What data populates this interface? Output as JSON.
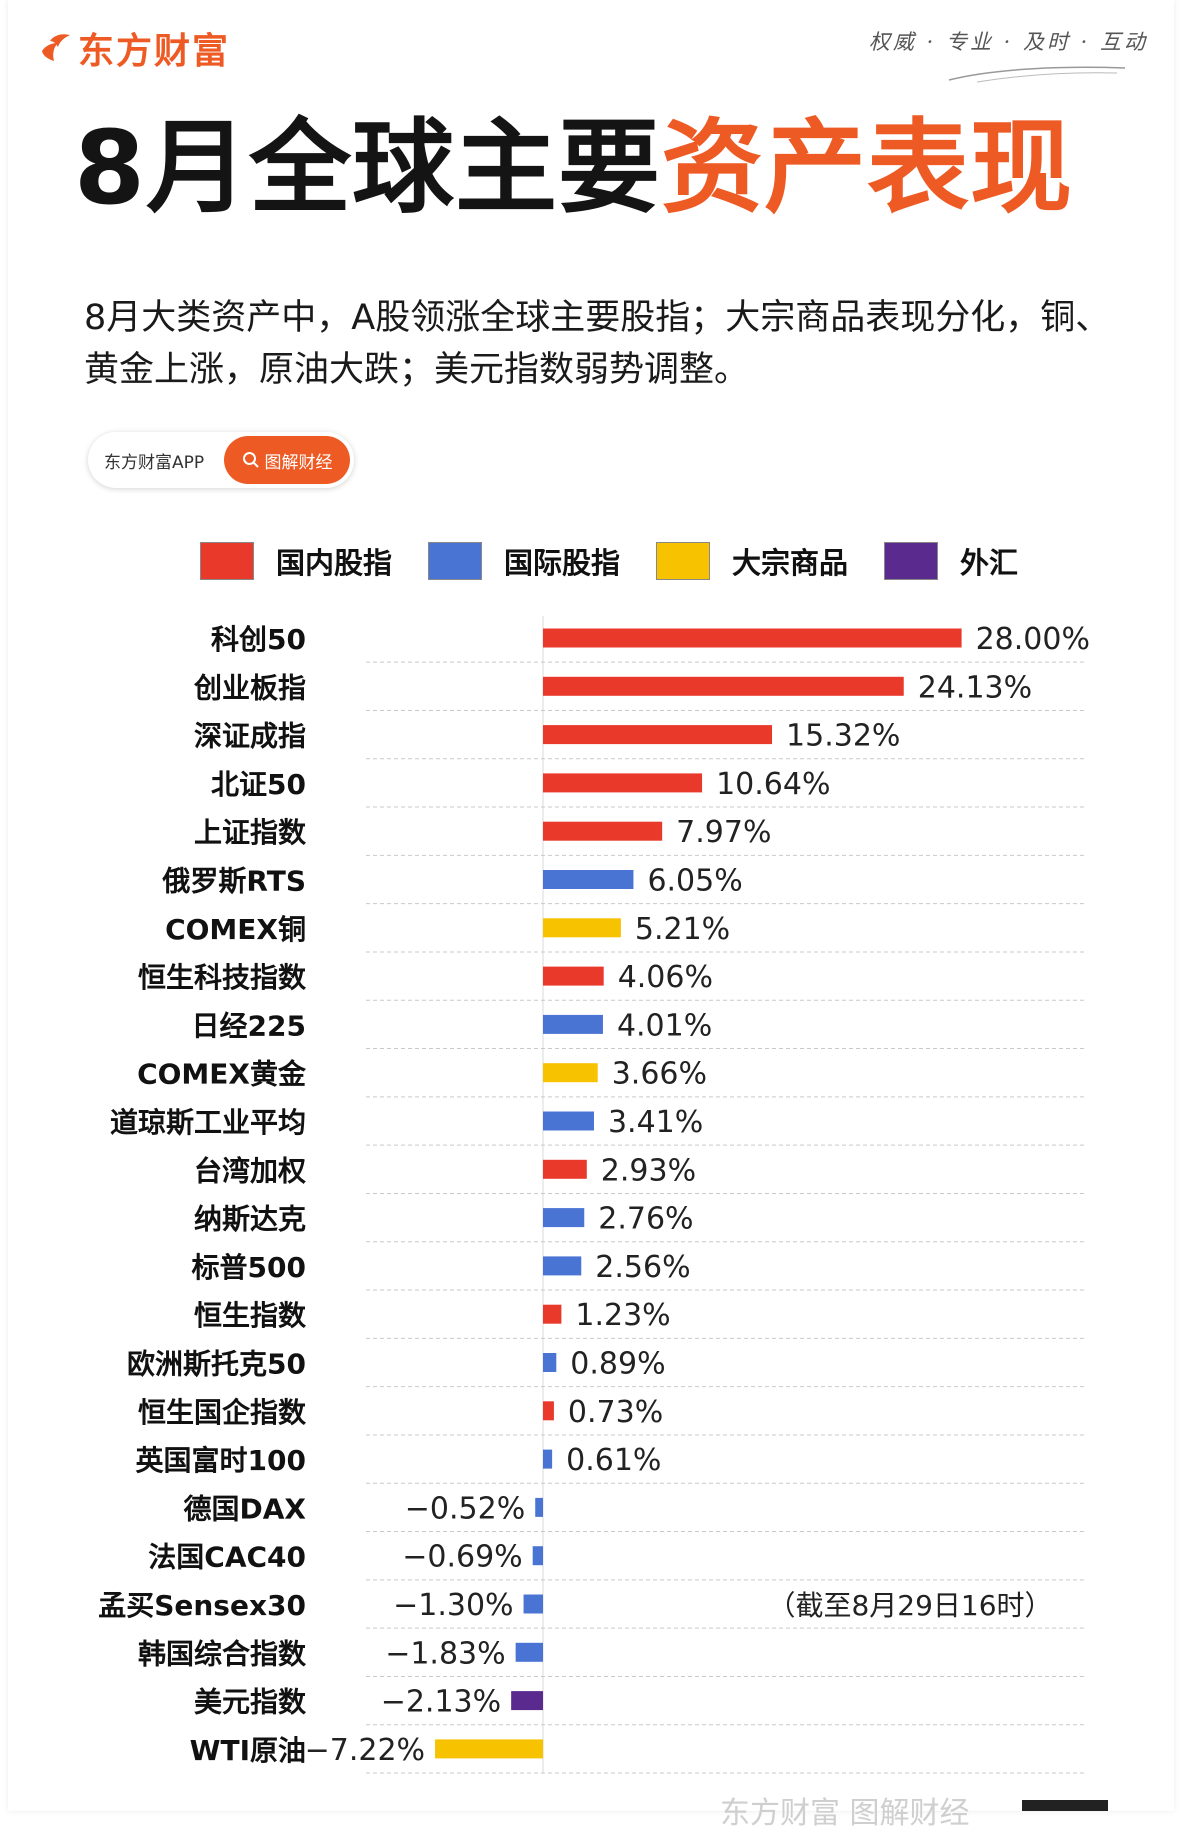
{
  "brand": {
    "name": "东方财富",
    "slogan": "权威 · 专业 · 及时 · 互动",
    "color": "#ee5a24"
  },
  "title": {
    "part1": "8月全球主要",
    "part2": "资产表现"
  },
  "description": "8月大类资产中，A股领涨全球主要股指；大宗商品表现分化，铜、黄金上涨，原油大跌；美元指数弱势调整。",
  "search": {
    "app_label": "东方财富APP",
    "button_label": "图解财经",
    "button_icon": "search-icon"
  },
  "legend": [
    {
      "label": "国内股指",
      "color": "#e8392b"
    },
    {
      "label": "国际股指",
      "color": "#4a74d4"
    },
    {
      "label": "大宗商品",
      "color": "#f7c200"
    },
    {
      "label": "外汇",
      "color": "#5b2a8e"
    }
  ],
  "chart_data": {
    "type": "bar",
    "orientation": "horizontal",
    "unit": "%",
    "categories": [
      "科创50",
      "创业板指",
      "深证成指",
      "北证50",
      "上证指数",
      "俄罗斯RTS",
      "COMEX铜",
      "恒生科技指数",
      "日经225",
      "COMEX黄金",
      "道琼斯工业平均",
      "台湾加权",
      "纳斯达克",
      "标普500",
      "恒生指数",
      "欧洲斯托克50",
      "恒生国企指数",
      "英国富时100",
      "德国DAX",
      "法国CAC40",
      "孟买Sensex30",
      "韩国综合指数",
      "美元指数",
      "WTI原油"
    ],
    "values": [
      28.0,
      24.13,
      15.32,
      10.64,
      7.97,
      6.05,
      5.21,
      4.06,
      4.01,
      3.66,
      3.41,
      2.93,
      2.76,
      2.56,
      1.23,
      0.89,
      0.73,
      0.61,
      -0.52,
      -0.69,
      -1.3,
      -1.83,
      -2.13,
      -7.22
    ],
    "value_labels": [
      "28.00%",
      "24.13%",
      "15.32%",
      "10.64%",
      "7.97%",
      "6.05%",
      "5.21%",
      "4.06%",
      "4.01%",
      "3.66%",
      "3.41%",
      "2.93%",
      "2.76%",
      "2.56%",
      "1.23%",
      "0.89%",
      "0.73%",
      "0.61%",
      "−0.52%",
      "−0.69%",
      "−1.30%",
      "−1.83%",
      "−2.13%",
      "−7.22%"
    ],
    "groups": [
      "国内股指",
      "国内股指",
      "国内股指",
      "国内股指",
      "国内股指",
      "国际股指",
      "大宗商品",
      "国内股指",
      "国际股指",
      "大宗商品",
      "国际股指",
      "国内股指",
      "国际股指",
      "国际股指",
      "国内股指",
      "国际股指",
      "国内股指",
      "国际股指",
      "国际股指",
      "国际股指",
      "国际股指",
      "国际股指",
      "外汇",
      "大宗商品"
    ],
    "note": "（截至8月29日16时）",
    "grid": true,
    "gridlines": "dashed-horizontal"
  },
  "footer": {
    "watermark": "东方财富 图解财经"
  }
}
